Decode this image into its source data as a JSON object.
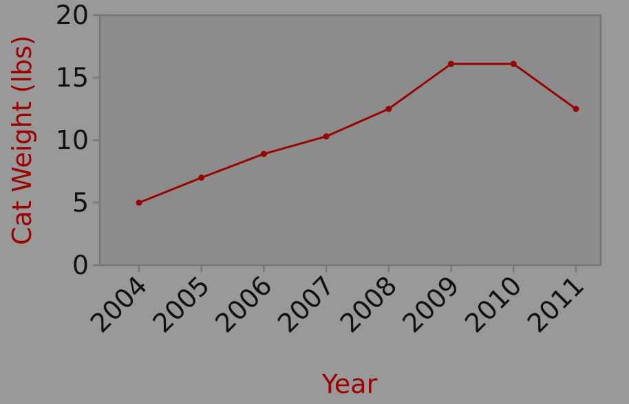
{
  "chart_data": {
    "type": "line",
    "title": "",
    "xlabel": "Year",
    "ylabel": "Cat Weight (lbs)",
    "categories": [
      "2004",
      "2005",
      "2006",
      "2007",
      "2008",
      "2009",
      "2010",
      "2011"
    ],
    "values": [
      5,
      7,
      8.9,
      10.3,
      12.5,
      16.1,
      16.1,
      12.5
    ],
    "ylim": [
      0,
      20
    ],
    "yticks": [
      "0",
      "5",
      "10",
      "15",
      "20"
    ],
    "grid": false,
    "colors": {
      "line": "#990000",
      "plot_background": "#8c8c8c",
      "page_background": "#999999",
      "axis": "#777777",
      "axis_title": "#990000"
    }
  }
}
